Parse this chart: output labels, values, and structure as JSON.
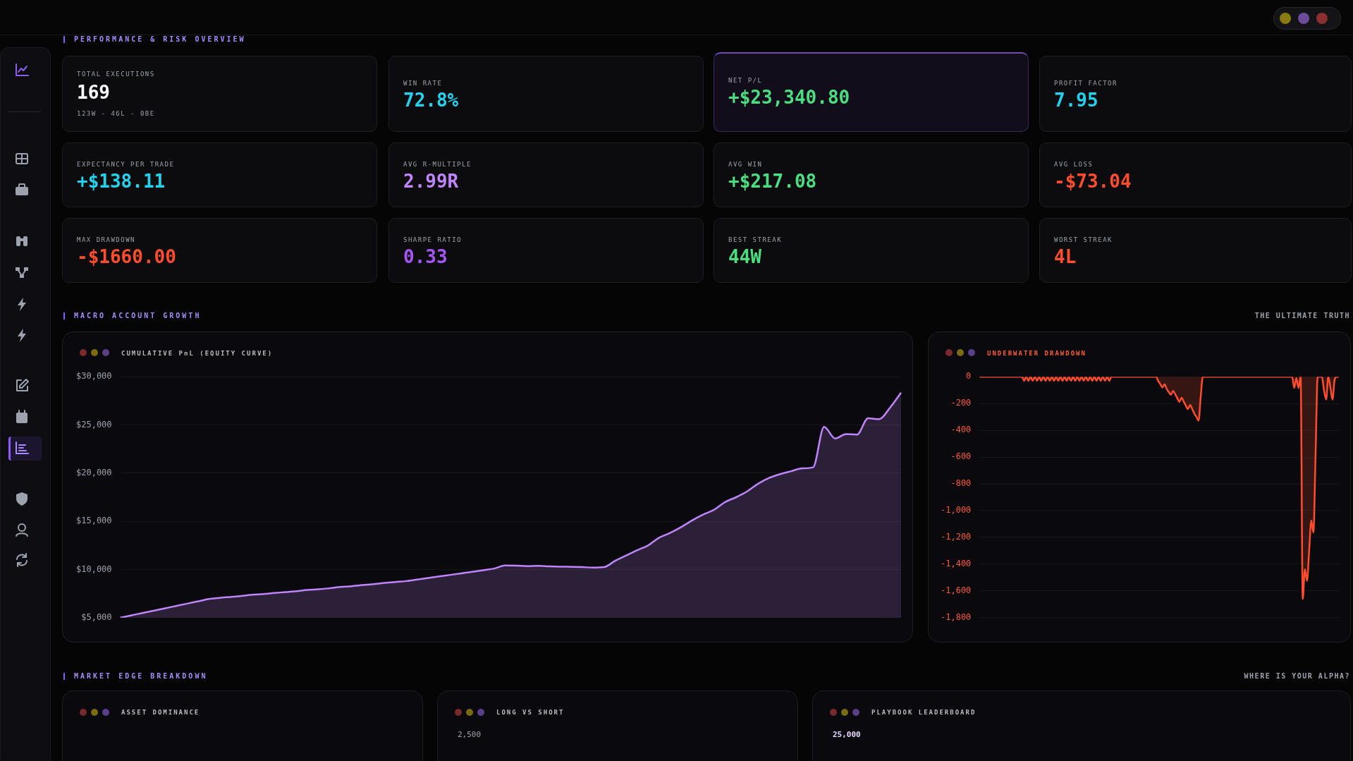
{
  "chart_data": [
    {
      "type": "other",
      "title": "PERFORMANCE & RISK OVERVIEW",
      "categories": [
        "TOTAL EXECUTIONS",
        "WIN RATE",
        "NET P/L",
        "PROFIT FACTOR",
        "EXPECTANCY PER TRADE",
        "AVG R-MULTIPLE",
        "AVG WIN",
        "AVG LOSS",
        "MAX DRAWDOWN",
        "SHARPE RATIO",
        "BEST STREAK",
        "WORST STREAK"
      ],
      "value_labels": [
        "169",
        "72.8%",
        "+$23,340.80",
        "7.95",
        "+$138.11",
        "2.99R",
        "+$217.08",
        "-$73.04",
        "-$1660.00",
        "0.33",
        "44W",
        "4L"
      ],
      "annotations": [
        "123W - 46L - 0BE"
      ]
    },
    {
      "type": "area",
      "title": "CUMULATIVE PnL (EQUITY CURVE)",
      "annotations": [
        "MACRO ACCOUNT GROWTH"
      ],
      "categories": [
        null,
        null,
        null,
        null,
        null,
        null,
        null,
        null,
        null,
        null,
        null,
        null,
        null,
        null,
        null,
        null,
        null,
        null,
        null,
        null,
        null,
        null,
        null,
        null,
        null,
        null,
        null,
        null,
        null,
        null,
        null,
        null,
        null,
        null,
        null,
        null,
        null,
        null,
        null,
        null,
        null,
        null,
        null,
        null,
        null,
        null,
        null,
        null,
        null,
        null,
        null,
        null,
        null,
        null,
        null,
        null,
        null,
        null,
        null,
        null,
        null,
        null,
        null,
        null,
        null,
        null,
        null,
        null,
        null,
        null,
        null,
        null
      ],
      "series": [
        {
          "color": "#c084fc",
          "values": [
            5000,
            5240,
            5480,
            5720,
            5960,
            6200,
            6440,
            6680,
            6920,
            7050,
            7150,
            7250,
            7380,
            7450,
            7560,
            7650,
            7750,
            7880,
            7950,
            8050,
            8180,
            8260,
            8380,
            8480,
            8600,
            8700,
            8800,
            8960,
            9120,
            9280,
            9440,
            9600,
            9760,
            9930,
            10100,
            10420,
            10400,
            10350,
            10380,
            10330,
            10300,
            10280,
            10250,
            10200,
            10250,
            10900,
            11450,
            12000,
            12500,
            13300,
            13800,
            14400,
            15100,
            15700,
            16200,
            17000,
            17500,
            18100,
            18900,
            19500,
            19900,
            20200,
            20500,
            20600,
            24800,
            23600,
            24050,
            24000,
            25700,
            25600,
            26800,
            28350
          ]
        }
      ],
      "ylim": [
        5000,
        30000
      ],
      "yticks": [
        {
          "value": 5000,
          "label": "$5,000"
        },
        {
          "value": 10000,
          "label": "$10,000"
        },
        {
          "value": 15000,
          "label": "$15,000"
        },
        {
          "value": 20000,
          "label": "$20,000"
        },
        {
          "value": 25000,
          "label": "$25,000"
        },
        {
          "value": 30000,
          "label": "$30,000"
        }
      ],
      "grid": "y",
      "tick_labels": "y"
    },
    {
      "type": "area",
      "title": "UNDERWATER DRAWDOWN",
      "annotations": [
        "THE ULTIMATE TRUTH"
      ],
      "categories": [
        null,
        null,
        null,
        null,
        null,
        null,
        null,
        null,
        null,
        null,
        null,
        null,
        null,
        null,
        null,
        null,
        null,
        null,
        null,
        null,
        null,
        null,
        null,
        null,
        null,
        null,
        null,
        null,
        null,
        null,
        null,
        null,
        null,
        null,
        null,
        null,
        null,
        null,
        null,
        null,
        null,
        null,
        null,
        null,
        null,
        null,
        null,
        null,
        null,
        null,
        null,
        null,
        null,
        null,
        null,
        null,
        null,
        null,
        null,
        null,
        null,
        null,
        null,
        null,
        null,
        null,
        null,
        null,
        null,
        null,
        null,
        null,
        null,
        null,
        null,
        null,
        null,
        null,
        null,
        null,
        null,
        null,
        null,
        null,
        null,
        null,
        null,
        null,
        null,
        null,
        null,
        null,
        null,
        null,
        null,
        null,
        null,
        null,
        null,
        null,
        null,
        null,
        null,
        null,
        null,
        null,
        null,
        null,
        null,
        null,
        null,
        null,
        null,
        null,
        null,
        null,
        null,
        null,
        null,
        null,
        null,
        null,
        null,
        null,
        null,
        null,
        null,
        null,
        null,
        null,
        null,
        null,
        null,
        null,
        null,
        null,
        null,
        null,
        null,
        null,
        null,
        null,
        null,
        null,
        null,
        null,
        null,
        null,
        null,
        null,
        null,
        null,
        null,
        null,
        null,
        null,
        null,
        null,
        null,
        null,
        null,
        null,
        null,
        null,
        null,
        null,
        null,
        null,
        null,
        null
      ],
      "series": [
        {
          "color": "#ff4d2e",
          "values": [
            0,
            0,
            0,
            0,
            0,
            0,
            0,
            0,
            0,
            0,
            0,
            0,
            0,
            0,
            0,
            0,
            0,
            0,
            0,
            0,
            0,
            -30,
            0,
            -30,
            0,
            -30,
            0,
            -30,
            0,
            -30,
            0,
            -30,
            0,
            -30,
            0,
            -30,
            0,
            -30,
            0,
            -30,
            0,
            -30,
            0,
            -30,
            0,
            -30,
            0,
            -30,
            0,
            -30,
            0,
            -30,
            0,
            -30,
            0,
            -30,
            0,
            -30,
            0,
            -30,
            0,
            -30,
            0,
            0,
            0,
            0,
            0,
            0,
            0,
            0,
            0,
            0,
            0,
            0,
            0,
            0,
            0,
            0,
            0,
            0,
            0,
            0,
            0,
            0,
            -30,
            -55,
            -80,
            -55,
            -90,
            -115,
            -134,
            -105,
            -130,
            -160,
            -187,
            -157,
            -185,
            -215,
            -241,
            -211,
            -240,
            -275,
            -300,
            -327,
            -150,
            0,
            0,
            0,
            0,
            0,
            0,
            0,
            0,
            0,
            0,
            0,
            0,
            0,
            0,
            0,
            0,
            0,
            0,
            0,
            0,
            0,
            0,
            0,
            0,
            0,
            0,
            0,
            0,
            0,
            0,
            0,
            0,
            0,
            0,
            0,
            0,
            0,
            0,
            0,
            0,
            0,
            0,
            0,
            -84,
            -10,
            -84,
            0,
            -1660,
            -1439,
            -1525,
            -1300,
            -1074,
            -1164,
            -600,
            0,
            0,
            0,
            -100,
            -170,
            0,
            -80,
            -170,
            -20,
            0,
            0
          ]
        }
      ],
      "ylim": [
        -1800,
        0
      ],
      "yticks": [
        {
          "value": 0,
          "label": "0"
        },
        {
          "value": -200,
          "label": "-200"
        },
        {
          "value": -400,
          "label": "-400"
        },
        {
          "value": -600,
          "label": "-600"
        },
        {
          "value": -800,
          "label": "-800"
        },
        {
          "value": -1000,
          "label": "-1,000"
        },
        {
          "value": -1200,
          "label": "-1,200"
        },
        {
          "value": -1400,
          "label": "-1,400"
        },
        {
          "value": -1600,
          "label": "-1,600"
        },
        {
          "value": -1800,
          "label": "-1,800"
        }
      ],
      "grid": "y",
      "tick_labels": "y"
    },
    {
      "type": "other",
      "title": "MARKET EDGE BREAKDOWN",
      "subtitle": "WHERE IS YOUR ALPHA?",
      "categories": [
        "ASSET DOMINANCE",
        "LONG VS SHORT",
        "PLAYBOOK LEADERBOARD"
      ],
      "annotations": [
        "2,500",
        "25,000"
      ]
    }
  ]
}
